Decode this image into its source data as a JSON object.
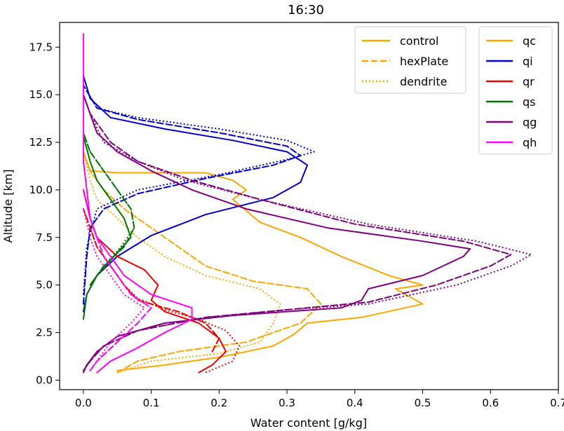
{
  "chart_data": {
    "type": "line",
    "title": "16:30",
    "xlabel": "Water content [g/kg]",
    "ylabel": "Altitude [km]",
    "xlim": [
      -0.035,
      0.7
    ],
    "ylim": [
      -0.5,
      18.8
    ],
    "xticks": [
      "0.0",
      "0.1",
      "0.2",
      "0.3",
      "0.4",
      "0.5",
      "0.6",
      "0.7"
    ],
    "xtick_values": [
      0.0,
      0.1,
      0.2,
      0.3,
      0.4,
      0.5,
      0.6,
      0.7
    ],
    "yticks": [
      "0.0",
      "2.5",
      "5.0",
      "7.5",
      "10.0",
      "12.5",
      "15.0",
      "17.5"
    ],
    "ytick_values": [
      0.0,
      2.5,
      5.0,
      7.5,
      10.0,
      12.5,
      15.0,
      17.5
    ],
    "grid": false,
    "legend_styles": {
      "position": "top-right",
      "entries": [
        {
          "label": "control",
          "dash": "solid"
        },
        {
          "label": "hexPlate",
          "dash": "dashed"
        },
        {
          "label": "dendrite",
          "dash": "dotted"
        }
      ]
    },
    "legend_species": {
      "position": "top-right",
      "entries": [
        {
          "label": "qc",
          "color": "#FFA500"
        },
        {
          "label": "qi",
          "color": "#0000CC"
        },
        {
          "label": "qr",
          "color": "#EE0000"
        },
        {
          "label": "qs",
          "color": "#007700"
        },
        {
          "label": "qg",
          "color": "#800080"
        },
        {
          "label": "qh",
          "color": "#FF00FF"
        }
      ]
    },
    "series": [
      {
        "species": "qc",
        "scheme": "control",
        "color": "#FFA500",
        "dash": "solid",
        "points": [
          [
            0.05,
            0.5
          ],
          [
            0.12,
            0.8
          ],
          [
            0.2,
            1.2
          ],
          [
            0.28,
            1.8
          ],
          [
            0.31,
            2.4
          ],
          [
            0.33,
            3.0
          ],
          [
            0.41,
            3.3
          ],
          [
            0.5,
            4.0
          ],
          [
            0.46,
            4.8
          ],
          [
            0.5,
            5.0
          ],
          [
            0.45,
            5.5
          ],
          [
            0.38,
            6.5
          ],
          [
            0.32,
            7.5
          ],
          [
            0.26,
            8.3
          ],
          [
            0.22,
            9.5
          ],
          [
            0.24,
            10.0
          ],
          [
            0.22,
            10.5
          ],
          [
            0.18,
            10.9
          ],
          [
            0.05,
            10.9
          ],
          [
            0.01,
            11.0
          ],
          [
            0.0,
            12.0
          ]
        ]
      },
      {
        "species": "qc",
        "scheme": "hexPlate",
        "color": "#FFA500",
        "dash": "dashed",
        "points": [
          [
            0.05,
            0.4
          ],
          [
            0.08,
            1.0
          ],
          [
            0.14,
            1.5
          ],
          [
            0.24,
            2.0
          ],
          [
            0.32,
            3.0
          ],
          [
            0.35,
            4.0
          ],
          [
            0.33,
            4.8
          ],
          [
            0.25,
            5.2
          ],
          [
            0.18,
            6.0
          ],
          [
            0.14,
            7.0
          ],
          [
            0.1,
            8.0
          ],
          [
            0.06,
            9.0
          ],
          [
            0.03,
            10.0
          ],
          [
            0.01,
            11.0
          ],
          [
            0.0,
            12.0
          ]
        ]
      },
      {
        "species": "qc",
        "scheme": "dendrite",
        "color": "#FFA500",
        "dash": "dotted",
        "points": [
          [
            0.05,
            0.4
          ],
          [
            0.1,
            1.0
          ],
          [
            0.2,
            1.4
          ],
          [
            0.26,
            2.0
          ],
          [
            0.28,
            3.0
          ],
          [
            0.29,
            4.0
          ],
          [
            0.26,
            4.8
          ],
          [
            0.18,
            5.5
          ],
          [
            0.12,
            6.5
          ],
          [
            0.08,
            7.5
          ],
          [
            0.05,
            8.5
          ],
          [
            0.02,
            9.5
          ],
          [
            0.01,
            10.5
          ],
          [
            0.0,
            12.0
          ]
        ]
      },
      {
        "species": "qi",
        "scheme": "control",
        "color": "#0000CC",
        "dash": "solid",
        "points": [
          [
            0.0,
            3.6
          ],
          [
            0.005,
            4.5
          ],
          [
            0.02,
            5.5
          ],
          [
            0.05,
            6.5
          ],
          [
            0.1,
            7.6
          ],
          [
            0.18,
            8.7
          ],
          [
            0.28,
            9.6
          ],
          [
            0.32,
            10.4
          ],
          [
            0.33,
            11.3
          ],
          [
            0.3,
            12.0
          ],
          [
            0.22,
            12.6
          ],
          [
            0.12,
            13.2
          ],
          [
            0.04,
            13.8
          ],
          [
            0.01,
            14.8
          ],
          [
            0.0,
            16.0
          ]
        ]
      },
      {
        "species": "qi",
        "scheme": "hexPlate",
        "color": "#0000CC",
        "dash": "dashed",
        "points": [
          [
            0.0,
            4.0
          ],
          [
            0.005,
            6.5
          ],
          [
            0.01,
            8.0
          ],
          [
            0.03,
            9.0
          ],
          [
            0.08,
            9.8
          ],
          [
            0.18,
            10.6
          ],
          [
            0.28,
            11.3
          ],
          [
            0.32,
            11.8
          ],
          [
            0.3,
            12.3
          ],
          [
            0.2,
            13.0
          ],
          [
            0.08,
            13.7
          ],
          [
            0.02,
            14.3
          ],
          [
            0.0,
            15.5
          ]
        ]
      },
      {
        "species": "qi",
        "scheme": "dendrite",
        "color": "#0000CC",
        "dash": "dotted",
        "points": [
          [
            0.0,
            4.5
          ],
          [
            0.005,
            7.0
          ],
          [
            0.02,
            9.0
          ],
          [
            0.08,
            10.0
          ],
          [
            0.2,
            10.8
          ],
          [
            0.3,
            11.6
          ],
          [
            0.34,
            12.0
          ],
          [
            0.3,
            12.6
          ],
          [
            0.2,
            13.2
          ],
          [
            0.08,
            13.8
          ],
          [
            0.02,
            14.3
          ],
          [
            0.0,
            15.5
          ]
        ]
      },
      {
        "species": "qr",
        "scheme": "control",
        "color": "#EE0000",
        "dash": "solid",
        "points": [
          [
            0.17,
            0.4
          ],
          [
            0.19,
            0.8
          ],
          [
            0.21,
            1.5
          ],
          [
            0.2,
            2.2
          ],
          [
            0.17,
            3.0
          ],
          [
            0.12,
            3.6
          ],
          [
            0.1,
            4.2
          ],
          [
            0.11,
            5.0
          ],
          [
            0.09,
            5.8
          ],
          [
            0.05,
            6.5
          ],
          [
            0.02,
            7.5
          ],
          [
            0.01,
            8.5
          ],
          [
            0.0,
            10.0
          ]
        ]
      },
      {
        "species": "qr",
        "scheme": "hexPlate",
        "color": "#EE0000",
        "dash": "dashed",
        "points": [
          [
            0.19,
            1.5
          ],
          [
            0.2,
            2.2
          ],
          [
            0.18,
            3.0
          ],
          [
            0.14,
            3.6
          ],
          [
            0.08,
            4.2
          ],
          [
            0.06,
            5.0
          ],
          [
            0.04,
            6.0
          ],
          [
            0.02,
            7.0
          ],
          [
            0.0,
            9.0
          ]
        ]
      },
      {
        "species": "qr",
        "scheme": "dendrite",
        "color": "#EE0000",
        "dash": "dotted",
        "points": [
          [
            0.18,
            0.4
          ],
          [
            0.22,
            1.0
          ],
          [
            0.23,
            1.8
          ],
          [
            0.21,
            2.6
          ],
          [
            0.17,
            3.2
          ],
          [
            0.12,
            3.7
          ],
          [
            0.08,
            4.3
          ],
          [
            0.06,
            5.0
          ],
          [
            0.04,
            6.0
          ],
          [
            0.02,
            7.0
          ],
          [
            0.0,
            9.0
          ]
        ]
      },
      {
        "species": "qs",
        "scheme": "control",
        "color": "#007700",
        "dash": "solid",
        "points": [
          [
            0.0,
            3.2
          ],
          [
            0.005,
            4.5
          ],
          [
            0.02,
            5.5
          ],
          [
            0.045,
            6.5
          ],
          [
            0.07,
            7.5
          ],
          [
            0.06,
            8.5
          ],
          [
            0.04,
            9.5
          ],
          [
            0.02,
            10.5
          ],
          [
            0.01,
            11.5
          ],
          [
            0.0,
            12.8
          ]
        ]
      },
      {
        "species": "qs",
        "scheme": "hexPlate",
        "color": "#007700",
        "dash": "dashed",
        "points": [
          [
            0.01,
            5.0
          ],
          [
            0.03,
            6.0
          ],
          [
            0.06,
            7.0
          ],
          [
            0.075,
            8.0
          ],
          [
            0.07,
            9.0
          ],
          [
            0.05,
            10.0
          ],
          [
            0.03,
            11.0
          ],
          [
            0.01,
            12.0
          ],
          [
            0.0,
            13.0
          ]
        ]
      },
      {
        "species": "qs",
        "scheme": "dendrite",
        "color": "#007700",
        "dash": "dotted",
        "points": [
          [
            0.01,
            5.0
          ],
          [
            0.03,
            6.0
          ],
          [
            0.055,
            7.0
          ],
          [
            0.075,
            8.0
          ],
          [
            0.07,
            9.0
          ],
          [
            0.05,
            10.0
          ],
          [
            0.03,
            11.0
          ],
          [
            0.01,
            12.0
          ],
          [
            0.0,
            13.0
          ]
        ]
      },
      {
        "species": "qg",
        "scheme": "control",
        "color": "#800080",
        "dash": "solid",
        "points": [
          [
            0.0,
            0.4
          ],
          [
            0.005,
            0.8
          ],
          [
            0.02,
            1.5
          ],
          [
            0.05,
            2.3
          ],
          [
            0.12,
            3.0
          ],
          [
            0.22,
            3.4
          ],
          [
            0.38,
            3.8
          ],
          [
            0.41,
            4.2
          ],
          [
            0.42,
            4.8
          ],
          [
            0.5,
            5.5
          ],
          [
            0.56,
            6.5
          ],
          [
            0.57,
            6.9
          ],
          [
            0.5,
            7.3
          ],
          [
            0.36,
            8.0
          ],
          [
            0.24,
            9.0
          ],
          [
            0.16,
            10.0
          ],
          [
            0.1,
            11.0
          ],
          [
            0.05,
            12.0
          ],
          [
            0.02,
            13.0
          ],
          [
            0.01,
            14.0
          ],
          [
            0.0,
            15.0
          ]
        ]
      },
      {
        "species": "qg",
        "scheme": "hexPlate",
        "color": "#800080",
        "dash": "dashed",
        "points": [
          [
            0.0,
            0.5
          ],
          [
            0.01,
            1.0
          ],
          [
            0.03,
            1.8
          ],
          [
            0.08,
            2.6
          ],
          [
            0.18,
            3.3
          ],
          [
            0.3,
            3.7
          ],
          [
            0.42,
            4.1
          ],
          [
            0.52,
            5.0
          ],
          [
            0.6,
            6.0
          ],
          [
            0.63,
            6.6
          ],
          [
            0.56,
            7.3
          ],
          [
            0.4,
            8.2
          ],
          [
            0.26,
            9.5
          ],
          [
            0.16,
            10.5
          ],
          [
            0.08,
            11.5
          ],
          [
            0.04,
            12.5
          ],
          [
            0.01,
            14.0
          ],
          [
            0.0,
            15.0
          ]
        ]
      },
      {
        "species": "qg",
        "scheme": "dendrite",
        "color": "#800080",
        "dash": "dotted",
        "points": [
          [
            0.0,
            0.5
          ],
          [
            0.01,
            1.0
          ],
          [
            0.03,
            1.8
          ],
          [
            0.08,
            2.6
          ],
          [
            0.18,
            3.3
          ],
          [
            0.3,
            3.7
          ],
          [
            0.42,
            4.0
          ],
          [
            0.55,
            5.0
          ],
          [
            0.63,
            6.0
          ],
          [
            0.66,
            6.6
          ],
          [
            0.58,
            7.3
          ],
          [
            0.42,
            8.2
          ],
          [
            0.26,
            9.5
          ],
          [
            0.15,
            10.5
          ],
          [
            0.08,
            11.5
          ],
          [
            0.03,
            12.5
          ],
          [
            0.01,
            14.0
          ],
          [
            0.0,
            15.0
          ]
        ]
      },
      {
        "species": "qh",
        "scheme": "control",
        "color": "#FF00FF",
        "dash": "solid",
        "points": [
          [
            0.02,
            0.4
          ],
          [
            0.04,
            1.0
          ],
          [
            0.08,
            1.7
          ],
          [
            0.12,
            2.5
          ],
          [
            0.16,
            3.2
          ],
          [
            0.16,
            3.8
          ],
          [
            0.1,
            4.5
          ],
          [
            0.06,
            5.5
          ],
          [
            0.04,
            6.5
          ],
          [
            0.02,
            7.5
          ],
          [
            0.01,
            8.5
          ],
          [
            0.005,
            10.0
          ],
          [
            0.0,
            11.5
          ],
          [
            0.0,
            18.2
          ]
        ]
      },
      {
        "species": "qh",
        "scheme": "hexPlate",
        "color": "#FF00FF",
        "dash": "dashed",
        "points": [
          [
            0.01,
            0.5
          ],
          [
            0.02,
            1.0
          ],
          [
            0.05,
            2.0
          ],
          [
            0.08,
            3.0
          ],
          [
            0.1,
            3.8
          ],
          [
            0.07,
            4.5
          ],
          [
            0.05,
            5.5
          ],
          [
            0.03,
            6.5
          ],
          [
            0.02,
            7.5
          ],
          [
            0.01,
            8.5
          ],
          [
            0.0,
            10.0
          ]
        ]
      },
      {
        "species": "qh",
        "scheme": "dendrite",
        "color": "#FF00FF",
        "dash": "dotted",
        "points": [
          [
            0.01,
            0.5
          ],
          [
            0.02,
            1.0
          ],
          [
            0.04,
            2.0
          ],
          [
            0.07,
            3.0
          ],
          [
            0.09,
            3.8
          ],
          [
            0.06,
            4.5
          ],
          [
            0.04,
            5.5
          ],
          [
            0.02,
            6.5
          ],
          [
            0.01,
            7.5
          ],
          [
            0.0,
            9.0
          ]
        ]
      }
    ]
  }
}
